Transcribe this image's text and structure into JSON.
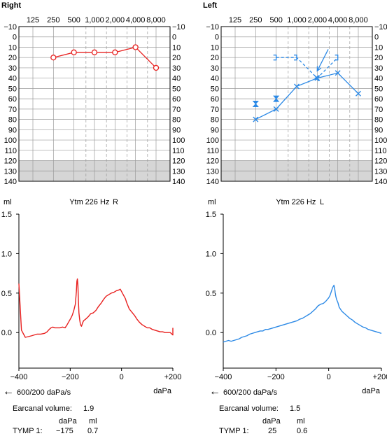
{
  "panels": {
    "right_title": "Right",
    "left_title": "Left"
  },
  "colors": {
    "right": "#e8201f",
    "left": "#2d8ae6",
    "grid": "#9a9a9a",
    "shade": "#d6d6d6"
  },
  "chart_data": [
    {
      "type": "line",
      "name": "audiogram-right",
      "title": "Right",
      "x_tick_labels": [
        "125",
        "250",
        "500",
        "1,000",
        "2,000",
        "4,000",
        "8,000"
      ],
      "x_freqs": [
        125,
        250,
        500,
        1000,
        2000,
        4000,
        8000
      ],
      "x_mid_freqs": [
        750,
        1500,
        3000,
        6000
      ],
      "y_tick_labels": [
        "−10",
        "0",
        "10",
        "20",
        "30",
        "40",
        "50",
        "60",
        "70",
        "80",
        "90",
        "100",
        "110",
        "120",
        "130",
        "140"
      ],
      "ylim": [
        -10,
        140
      ],
      "y_inverted": true,
      "shaded_range": [
        120,
        140
      ],
      "series": [
        {
          "marker": "circle",
          "color": "#e8201f",
          "connected": true,
          "points": [
            {
              "freq": 250,
              "db": 20
            },
            {
              "freq": 500,
              "db": 15
            },
            {
              "freq": 1000,
              "db": 15
            },
            {
              "freq": 2000,
              "db": 15
            },
            {
              "freq": 4000,
              "db": 10
            },
            {
              "freq": 8000,
              "db": 30
            }
          ]
        }
      ]
    },
    {
      "type": "line",
      "name": "audiogram-left",
      "title": "Left",
      "x_tick_labels": [
        "125",
        "250",
        "500",
        "1,000",
        "2,000",
        "4,000",
        "8,000"
      ],
      "x_freqs": [
        125,
        250,
        500,
        1000,
        2000,
        4000,
        8000
      ],
      "x_mid_freqs": [
        750,
        1500,
        3000,
        6000
      ],
      "y_tick_labels": [
        "−10",
        "0",
        "10",
        "20",
        "30",
        "40",
        "50",
        "60",
        "70",
        "80",
        "90",
        "100",
        "110",
        "120",
        "130",
        "140"
      ],
      "ylim": [
        -10,
        140
      ],
      "y_inverted": true,
      "shaded_range": [
        120,
        140
      ],
      "series": [
        {
          "marker": "x",
          "color": "#2d8ae6",
          "connected": true,
          "points": [
            {
              "freq": 250,
              "db": 80
            },
            {
              "freq": 500,
              "db": 70
            },
            {
              "freq": 1000,
              "db": 48
            },
            {
              "freq": 2000,
              "db": 40
            },
            {
              "freq": 4000,
              "db": 35
            },
            {
              "freq": 8000,
              "db": 55
            }
          ]
        },
        {
          "marker": "bone-bracket",
          "color": "#2d8ae6",
          "connected": true,
          "dashed": true,
          "points": [
            {
              "freq": 500,
              "db": 20
            },
            {
              "freq": 1000,
              "db": 20
            },
            {
              "freq": 2000,
              "db": 40
            },
            {
              "freq": 4000,
              "db": 20
            }
          ]
        },
        {
          "marker": "hourglass",
          "color": "#2d8ae6",
          "connected": false,
          "points": [
            {
              "freq": 250,
              "db": 65
            },
            {
              "freq": 500,
              "db": 60
            }
          ]
        }
      ],
      "arrows": [
        {
          "from_freq": 2900,
          "from_db": 12,
          "to_freq": 2000,
          "to_db": 33
        }
      ]
    },
    {
      "type": "line",
      "name": "tympanogram-right",
      "ylabel": "ml",
      "header": [
        "Ytm",
        "226 Hz",
        "R"
      ],
      "xlabel": "daPa",
      "xlim": [
        -400,
        200
      ],
      "ylim": [
        -0.45,
        1.5
      ],
      "x_tick_labels": [
        "−400",
        "−200",
        "0",
        "+200"
      ],
      "x_ticks": [
        -400,
        -200,
        0,
        200
      ],
      "y_tick_labels": [
        "1.5",
        "1.0",
        "0.5",
        "0.0"
      ],
      "y_ticks": [
        1.5,
        1.0,
        0.5,
        0.0
      ],
      "series": [
        {
          "color": "#e8201f",
          "x": [
            -400,
            -390,
            -375,
            -362,
            -350,
            -340,
            -330,
            -315,
            -300,
            -290,
            -282,
            -275,
            -268,
            -260,
            -250,
            -240,
            -230,
            -220,
            -212,
            -205,
            -198,
            -192,
            -186,
            -180,
            -176,
            -174,
            -172,
            -170,
            -168,
            -166,
            -163,
            -160,
            -156,
            -152,
            -148,
            -140,
            -130,
            -120,
            -110,
            -100,
            -90,
            -80,
            -70,
            -60,
            -50,
            -40,
            -30,
            -20,
            -10,
            -5,
            0,
            5,
            10,
            15,
            20,
            30,
            40,
            50,
            60,
            70,
            80,
            90,
            100,
            110,
            120,
            130,
            140,
            150,
            160,
            170,
            180,
            190,
            200,
            200
          ],
          "y": [
            0.62,
            0.03,
            -0.06,
            -0.05,
            -0.04,
            -0.03,
            -0.02,
            -0.02,
            -0.01,
            0.01,
            0.04,
            0.06,
            0.07,
            0.06,
            0.06,
            0.06,
            0.07,
            0.06,
            0.1,
            0.14,
            0.18,
            0.22,
            0.28,
            0.36,
            0.52,
            0.65,
            0.68,
            0.6,
            0.4,
            0.25,
            0.16,
            0.1,
            0.08,
            0.12,
            0.15,
            0.17,
            0.2,
            0.24,
            0.25,
            0.28,
            0.33,
            0.37,
            0.42,
            0.46,
            0.48,
            0.5,
            0.51,
            0.53,
            0.54,
            0.55,
            0.52,
            0.49,
            0.46,
            0.43,
            0.38,
            0.3,
            0.26,
            0.22,
            0.17,
            0.13,
            0.1,
            0.08,
            0.06,
            0.06,
            0.04,
            0.03,
            0.02,
            0.01,
            0.01,
            0.0,
            0.0,
            0.0,
            -0.03,
            0.06
          ]
        }
      ]
    },
    {
      "type": "line",
      "name": "tympanogram-left",
      "ylabel": "ml",
      "header": [
        "Ytm",
        "226 Hz",
        "L"
      ],
      "xlabel": "daPa",
      "xlim": [
        -400,
        200
      ],
      "ylim": [
        -0.45,
        1.5
      ],
      "x_tick_labels": [
        "−400",
        "−200",
        "0",
        "+200"
      ],
      "x_ticks": [
        -400,
        -200,
        0,
        200
      ],
      "y_tick_labels": [
        "1.5",
        "1.0",
        "0.5",
        "0.0"
      ],
      "y_ticks": [
        1.5,
        1.0,
        0.5,
        0.0
      ],
      "series": [
        {
          "color": "#2d8ae6",
          "x": [
            -400,
            -390,
            -380,
            -370,
            -360,
            -350,
            -340,
            -330,
            -320,
            -310,
            -300,
            -290,
            -280,
            -270,
            -260,
            -250,
            -240,
            -230,
            -220,
            -210,
            -200,
            -190,
            -180,
            -170,
            -160,
            -150,
            -140,
            -130,
            -120,
            -110,
            -100,
            -90,
            -80,
            -70,
            -60,
            -50,
            -40,
            -30,
            -20,
            -10,
            0,
            5,
            10,
            15,
            20,
            23,
            25,
            27,
            30,
            35,
            40,
            50,
            60,
            70,
            80,
            90,
            100,
            110,
            120,
            130,
            140,
            150,
            160,
            170,
            180,
            190,
            200
          ],
          "y": [
            -0.12,
            -0.11,
            -0.1,
            -0.11,
            -0.1,
            -0.09,
            -0.08,
            -0.06,
            -0.05,
            -0.04,
            -0.02,
            -0.01,
            0.0,
            0.01,
            0.02,
            0.02,
            0.04,
            0.04,
            0.05,
            0.06,
            0.07,
            0.08,
            0.09,
            0.1,
            0.11,
            0.12,
            0.13,
            0.14,
            0.15,
            0.17,
            0.18,
            0.2,
            0.22,
            0.24,
            0.27,
            0.3,
            0.34,
            0.36,
            0.37,
            0.4,
            0.44,
            0.47,
            0.52,
            0.57,
            0.6,
            0.55,
            0.5,
            0.46,
            0.42,
            0.38,
            0.32,
            0.27,
            0.24,
            0.21,
            0.18,
            0.16,
            0.13,
            0.11,
            0.09,
            0.07,
            0.06,
            0.04,
            0.03,
            0.02,
            0.01,
            0.0,
            -0.01
          ]
        }
      ]
    }
  ],
  "right_info": {
    "speed": "600/200 daPa/s",
    "volume_label": "Earcanal volume:",
    "volume_value": "1.9",
    "col_dapa": "daPa",
    "col_ml": "ml",
    "row_label": "TYMP 1:",
    "dapa_value": "−175",
    "ml_value": "0.7"
  },
  "left_info": {
    "speed": "600/200 daPa/s",
    "volume_label": "Earcanal volume:",
    "volume_value": "1.5",
    "col_dapa": "daPa",
    "col_ml": "ml",
    "row_label": "TYMP 1:",
    "dapa_value": "25",
    "ml_value": "0.6"
  }
}
